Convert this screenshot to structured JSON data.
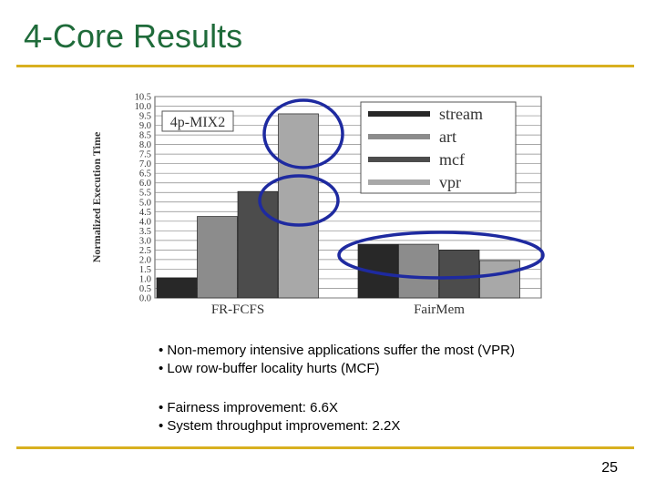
{
  "slide": {
    "title": "4-Core Results",
    "page_number": "25",
    "title_color": "#1f6b3a",
    "rule_color": "#d8b020",
    "bullets_group1": [
      "• Non-memory intensive applications suffer the most (VPR)",
      "• Low row-buffer locality hurts (MCF)"
    ],
    "bullets_group2": [
      "• Fairness improvement: 6.6X",
      "• System throughput improvement: 2.2X"
    ]
  },
  "chart_data": {
    "type": "bar",
    "title": "4p-MIX2",
    "xlabel": "",
    "ylabel": "Normalized Execution Time",
    "ylim": [
      0,
      10.5
    ],
    "yticks": [
      "0.0",
      "0.5",
      "1.0",
      "1.5",
      "2.0",
      "2.5",
      "3.0",
      "3.5",
      "4.0",
      "4.5",
      "5.0",
      "5.5",
      "6.0",
      "6.5",
      "7.0",
      "7.5",
      "8.0",
      "8.5",
      "9.0",
      "9.5",
      "10.0",
      "10.5"
    ],
    "grid": true,
    "legend_position": "top-right",
    "categories": [
      "FR-FCFS",
      "FairMem"
    ],
    "series": [
      {
        "name": "stream",
        "color": "#282828",
        "values": [
          1.05,
          2.8
        ]
      },
      {
        "name": "art",
        "color": "#8c8c8c",
        "values": [
          4.25,
          2.8
        ]
      },
      {
        "name": "mcf",
        "color": "#4c4c4c",
        "values": [
          5.55,
          2.5
        ]
      },
      {
        "name": "vpr",
        "color": "#a8a8a8",
        "values": [
          9.6,
          1.95
        ]
      }
    ],
    "highlight_color": "#1e2aa0"
  }
}
